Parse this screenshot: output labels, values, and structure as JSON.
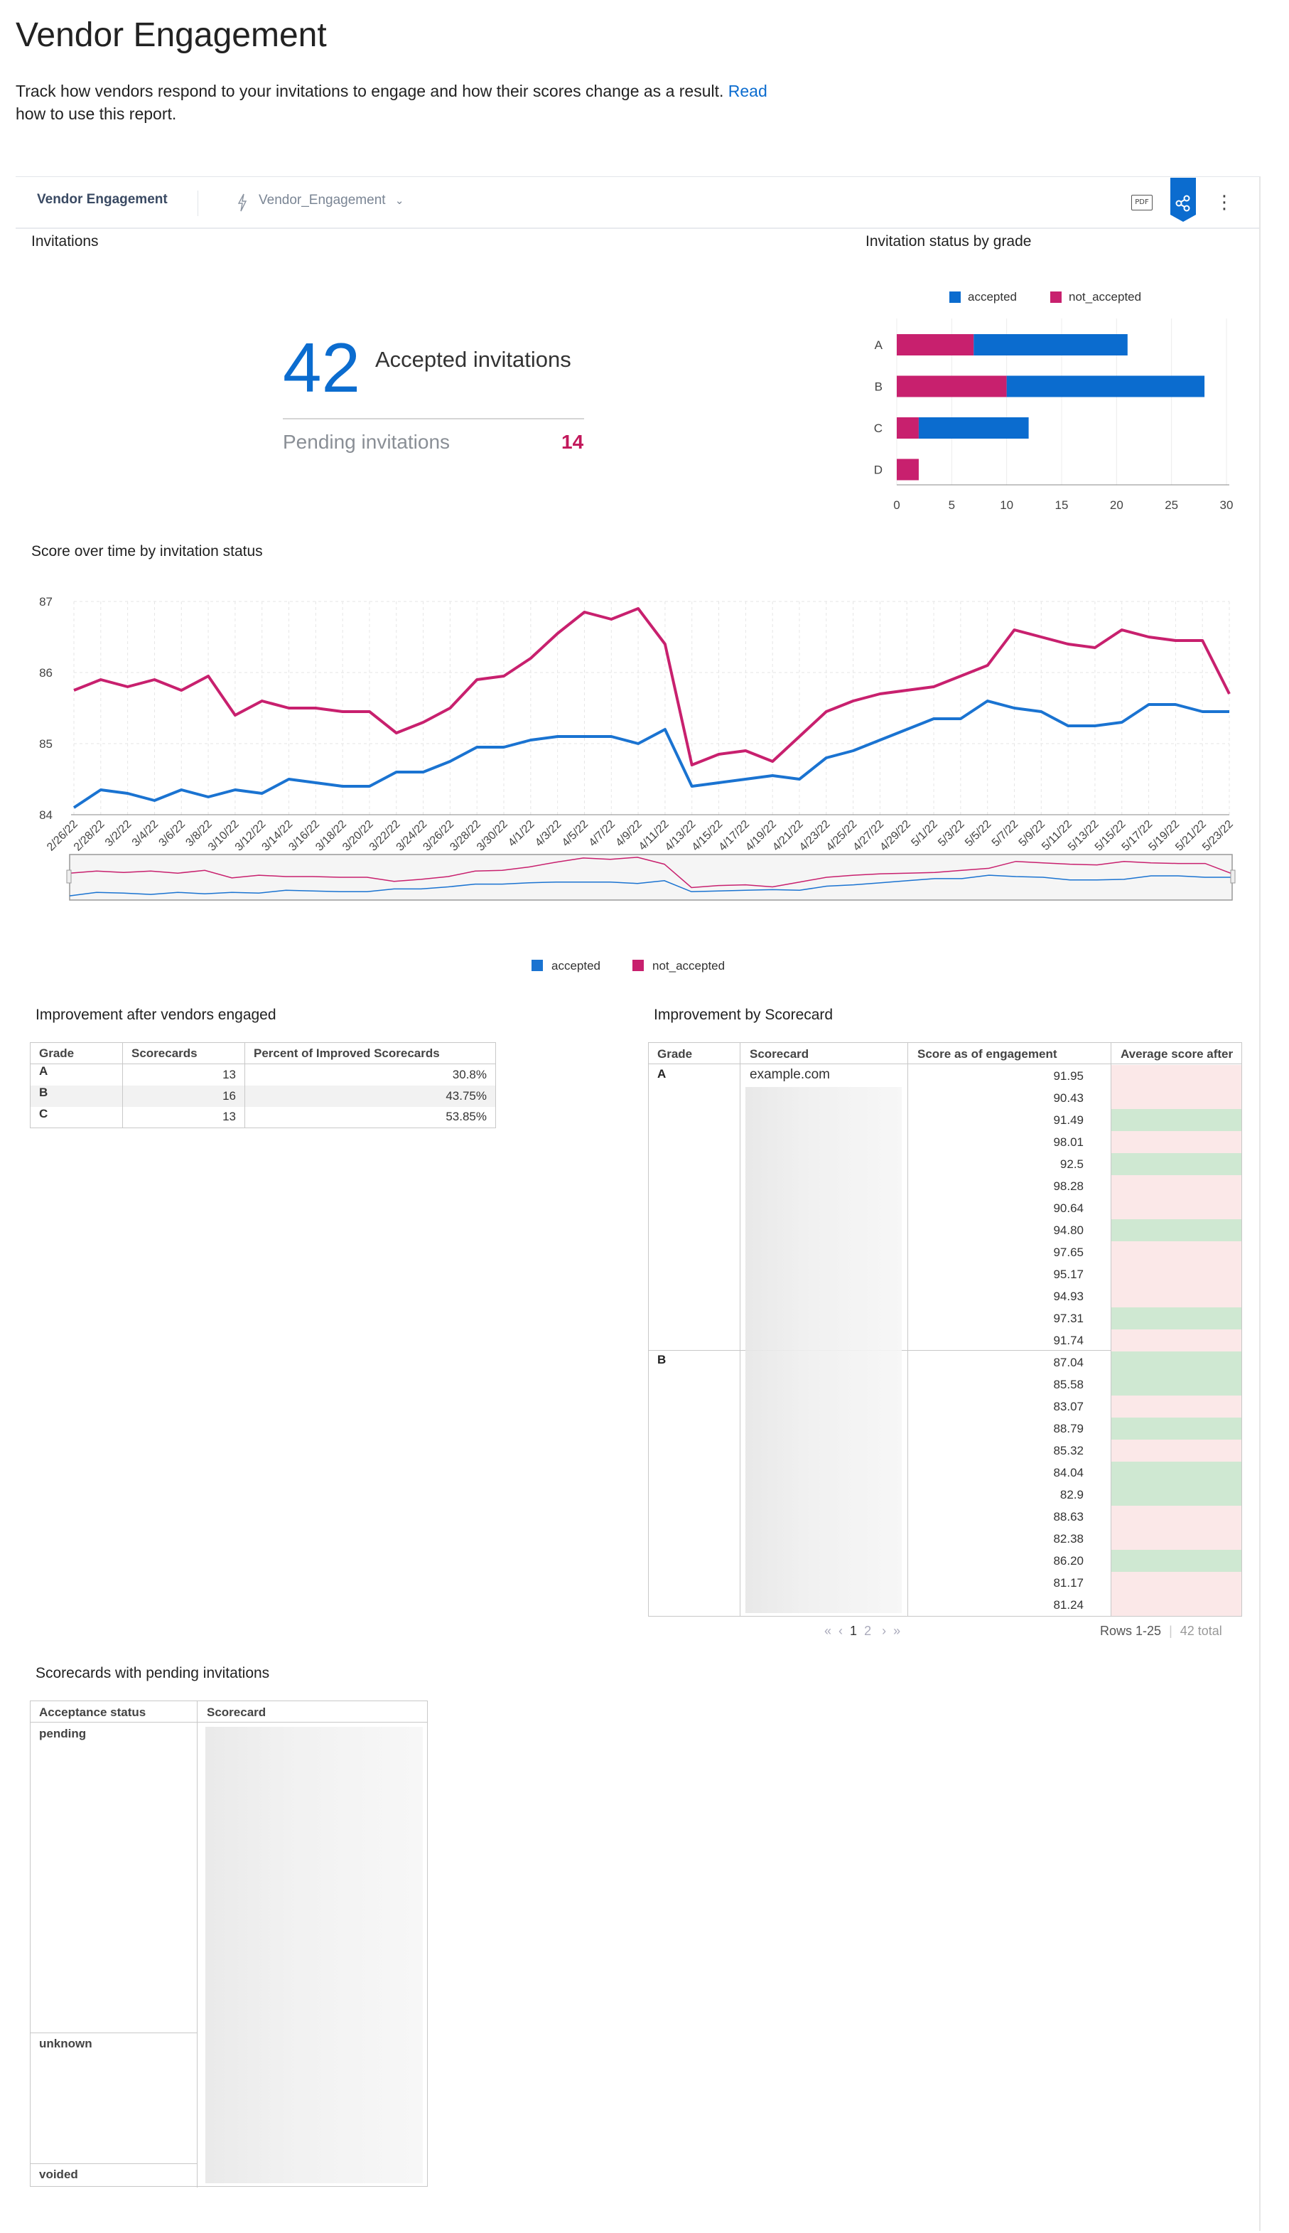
{
  "page": {
    "title": "Vendor Engagement",
    "description": "Track how vendors respond to your invitations to engage and how their scores change as a result.",
    "read_link": "Read",
    "description_tail": "how to use this report."
  },
  "toolbar": {
    "title": "Vendor Engagement",
    "source": "Vendor_Engagement",
    "pdf_label": "PDF",
    "more_label": "⋮"
  },
  "invitations": {
    "section_title": "Invitations",
    "accepted_value": "42",
    "accepted_label": "Accepted invitations",
    "pending_label": "Pending invitations",
    "pending_value": "14"
  },
  "status_by_grade": {
    "section_title": "Invitation status by grade",
    "colors": {
      "accepted": "#0b6ccf",
      "not_accepted": "#c8206e"
    }
  },
  "score_over_time": {
    "section_title": "Score over time by invitation status",
    "colors": {
      "accepted": "#1a73d1",
      "not_accepted": "#c8206e"
    }
  },
  "chart_data": [
    {
      "type": "bar",
      "orientation": "horizontal",
      "stacked": true,
      "categories": [
        "A",
        "B",
        "C",
        "D"
      ],
      "series": [
        {
          "name": "not_accepted",
          "values": [
            7,
            10,
            2,
            2
          ]
        },
        {
          "name": "accepted",
          "values": [
            14,
            18,
            10,
            0
          ]
        }
      ],
      "xlim": [
        0,
        30
      ],
      "xticks": [
        0,
        5,
        10,
        15,
        20,
        25,
        30
      ],
      "legend": "top"
    },
    {
      "type": "line",
      "x": [
        "2/26/22",
        "2/28/22",
        "3/2/22",
        "3/4/22",
        "3/6/22",
        "3/8/22",
        "3/10/22",
        "3/12/22",
        "3/14/22",
        "3/16/22",
        "3/18/22",
        "3/20/22",
        "3/22/22",
        "3/24/22",
        "3/26/22",
        "3/28/22",
        "3/30/22",
        "4/1/22",
        "4/3/22",
        "4/5/22",
        "4/7/22",
        "4/9/22",
        "4/11/22",
        "4/13/22",
        "4/15/22",
        "4/17/22",
        "4/19/22",
        "4/21/22",
        "4/23/22",
        "4/25/22",
        "4/27/22",
        "4/29/22",
        "5/1/22",
        "5/3/22",
        "5/5/22",
        "5/7/22",
        "5/9/22",
        "5/11/22",
        "5/13/22",
        "5/15/22",
        "5/17/22",
        "5/19/22",
        "5/21/22",
        "5/23/22"
      ],
      "series": [
        {
          "name": "accepted",
          "values": [
            84.1,
            84.35,
            84.3,
            84.2,
            84.35,
            84.25,
            84.35,
            84.3,
            84.5,
            84.45,
            84.4,
            84.4,
            84.6,
            84.6,
            84.75,
            84.95,
            84.95,
            85.05,
            85.1,
            85.1,
            85.1,
            85.0,
            85.2,
            84.4,
            84.45,
            84.5,
            84.55,
            84.5,
            84.8,
            84.9,
            85.05,
            85.2,
            85.35,
            85.35,
            85.6,
            85.5,
            85.45,
            85.25,
            85.25,
            85.3,
            85.55,
            85.55,
            85.45,
            85.45
          ]
        },
        {
          "name": "not_accepted",
          "values": [
            85.75,
            85.9,
            85.8,
            85.9,
            85.75,
            85.95,
            85.4,
            85.6,
            85.5,
            85.5,
            85.45,
            85.45,
            85.15,
            85.3,
            85.5,
            85.9,
            85.95,
            86.2,
            86.55,
            86.85,
            86.75,
            86.9,
            86.4,
            84.7,
            84.85,
            84.9,
            84.75,
            85.1,
            85.45,
            85.6,
            85.7,
            85.75,
            85.8,
            85.95,
            86.1,
            86.6,
            86.5,
            86.4,
            86.35,
            86.6,
            86.5,
            86.45,
            86.45,
            85.7
          ]
        }
      ],
      "ylim": [
        84,
        87
      ],
      "yticks": [
        84,
        85,
        86,
        87
      ],
      "legend": "bottom"
    }
  ],
  "improvement_engaged": {
    "section_title": "Improvement after vendors engaged",
    "headers": [
      "Grade",
      "Scorecards",
      "Percent of Improved Scorecards"
    ],
    "rows": [
      [
        "A",
        "13",
        "30.8%"
      ],
      [
        "B",
        "16",
        "43.75%"
      ],
      [
        "C",
        "13",
        "53.85%"
      ]
    ]
  },
  "improvement_scorecard": {
    "section_title": "Improvement by Scorecard",
    "headers": [
      "Grade",
      "Scorecard",
      "Score as of engagement",
      "Average score after"
    ],
    "first_scorecard": "example.com",
    "groups": [
      {
        "grade": "A",
        "scores": [
          "91.95",
          "90.43",
          "91.49",
          "98.01",
          "92.5",
          "98.28",
          "90.64",
          "94.80",
          "97.65",
          "95.17",
          "94.93",
          "97.31",
          "91.74"
        ],
        "improved": [
          false,
          false,
          true,
          false,
          true,
          false,
          false,
          true,
          false,
          false,
          false,
          true,
          false
        ]
      },
      {
        "grade": "B",
        "scores": [
          "87.04",
          "85.58",
          "83.07",
          "88.79",
          "85.32",
          "84.04",
          "82.9",
          "88.63",
          "82.38",
          "86.20",
          "81.17",
          "81.24"
        ],
        "improved": [
          true,
          true,
          false,
          true,
          false,
          true,
          true,
          false,
          false,
          true,
          false,
          false
        ]
      }
    ],
    "colors": {
      "improved": "#cfe8d2",
      "not_improved": "#fbe8e8"
    },
    "pager": {
      "first": "«",
      "prev": "‹",
      "page1": "1",
      "page2": "2",
      "next": "›",
      "last": "»"
    },
    "rows_label": "Rows 1-25",
    "total_label": "42 total"
  },
  "pending_scorecards": {
    "section_title": "Scorecards with pending invitations",
    "headers": [
      "Acceptance status",
      "Scorecard"
    ],
    "statuses": [
      "pending",
      "unknown",
      "voided"
    ]
  },
  "legend": {
    "accepted": "accepted",
    "not_accepted": "not_accepted"
  }
}
